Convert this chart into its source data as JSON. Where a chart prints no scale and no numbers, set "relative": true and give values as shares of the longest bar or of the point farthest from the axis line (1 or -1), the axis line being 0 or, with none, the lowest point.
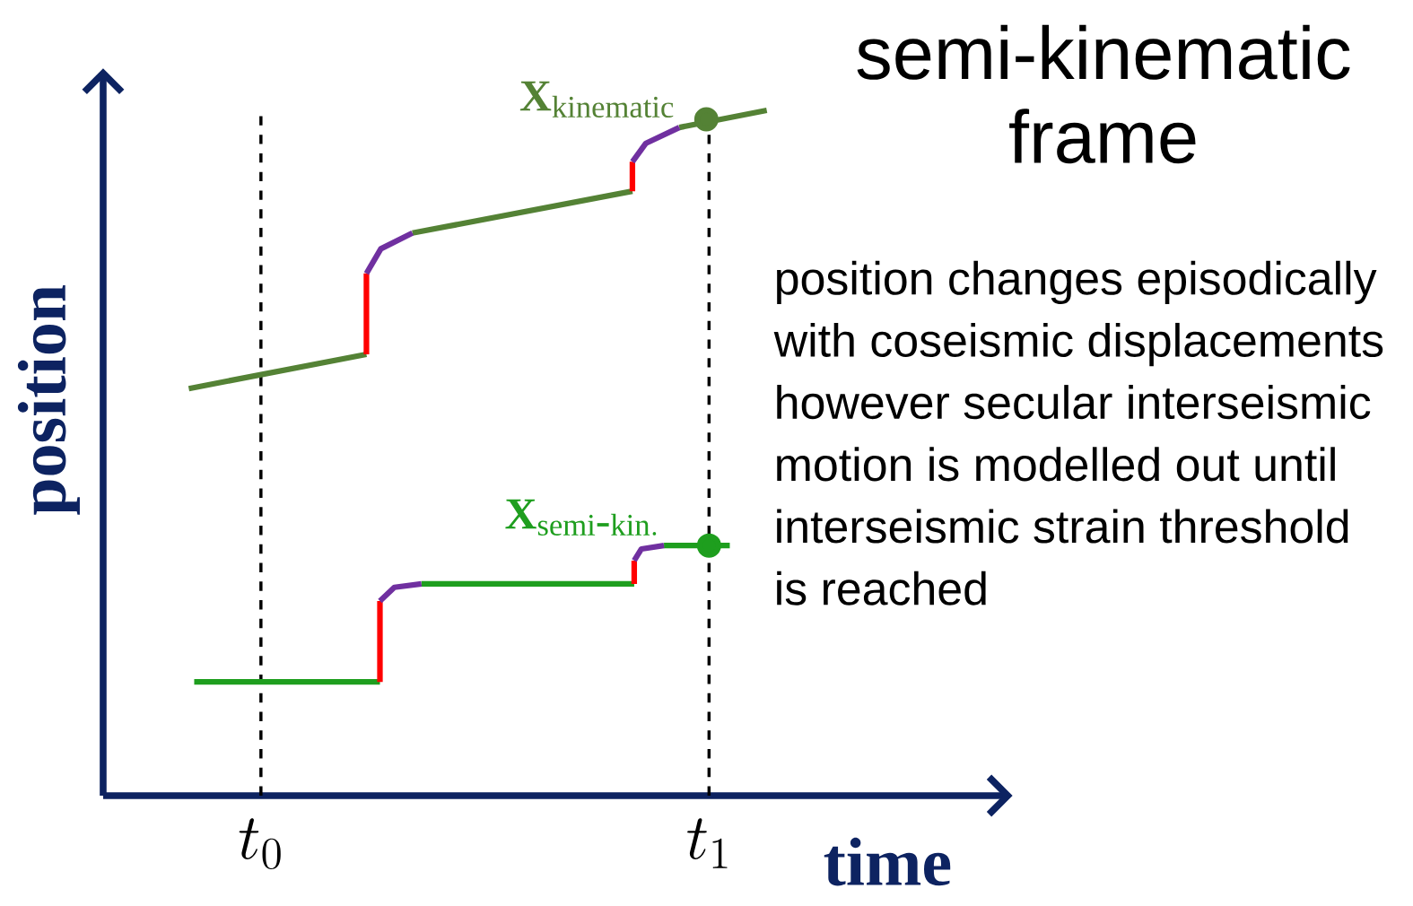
{
  "chart_data": {
    "type": "line",
    "title": "semi-kinematic frame",
    "xlabel": "time",
    "ylabel": "position",
    "relative": true,
    "xlim": [
      0,
      1
    ],
    "xticks": [
      {
        "value": 0.175,
        "label": "t_{0}"
      },
      {
        "value": 0.672,
        "label": "t_{1}"
      }
    ],
    "annotations": [
      "position changes episodically with coseismic displacements however secular interseismic motion is modelled out until interseismic strain threshold is reached"
    ],
    "ref_lines": [
      {
        "axis": "x",
        "value": 0.175,
        "color": "#000000",
        "line_style": "dashed"
      },
      {
        "axis": "x",
        "value": 0.672,
        "color": "#000000",
        "line_style": "dashed"
      }
    ],
    "series": [
      {
        "name": "\\mathbf{X}_{\\mathrm{kinematic}}",
        "color": "#548235",
        "x": [
          0.095,
          0.292,
          0.3,
          0.343,
          0.587,
          0.6,
          0.639,
          0.736
        ],
        "values": [
          0.594,
          0.644,
          null,
          0.821,
          0.882,
          null,
          0.975,
          1.0
        ]
      },
      {
        "color": "#ff0000",
        "x": [
          0.292,
          0.292,
          0.45,
          0.587,
          0.587
        ],
        "values": [
          0.644,
          0.762,
          null,
          0.882,
          0.925
        ]
      },
      {
        "color": "#7030a0",
        "x": [
          0.292,
          0.308,
          0.343,
          0.45,
          0.587,
          0.602,
          0.639
        ],
        "values": [
          0.762,
          0.798,
          0.821,
          null,
          0.925,
          0.952,
          0.975
        ]
      },
      {
        "name": "\\mathbf{X}_{\\mathrm{semi\\mbox{-}kin.}}",
        "color": "#1e9e1e",
        "x": [
          0.101,
          0.307,
          0.32,
          0.353,
          0.589,
          0.6,
          0.622,
          0.695
        ],
        "values": [
          0.166,
          0.166,
          null,
          0.309,
          0.309,
          null,
          0.365,
          0.365
        ]
      },
      {
        "color": "#ff0000",
        "x": [
          0.307,
          0.307,
          0.45,
          0.589,
          0.589
        ],
        "values": [
          0.166,
          0.284,
          null,
          0.309,
          0.343
        ]
      },
      {
        "color": "#7030a0",
        "x": [
          0.307,
          0.323,
          0.353,
          0.45,
          0.589,
          0.597,
          0.622
        ],
        "values": [
          0.284,
          0.304,
          0.309,
          null,
          0.343,
          0.36,
          0.365
        ]
      },
      {
        "type": "scatter",
        "marker": "circle",
        "color": "#548235",
        "x": [
          0.669
        ],
        "values": [
          0.987
        ]
      },
      {
        "type": "scatter",
        "marker": "circle",
        "color": "#1e9e1e",
        "x": [
          0.672
        ],
        "values": [
          0.365
        ]
      }
    ]
  }
}
